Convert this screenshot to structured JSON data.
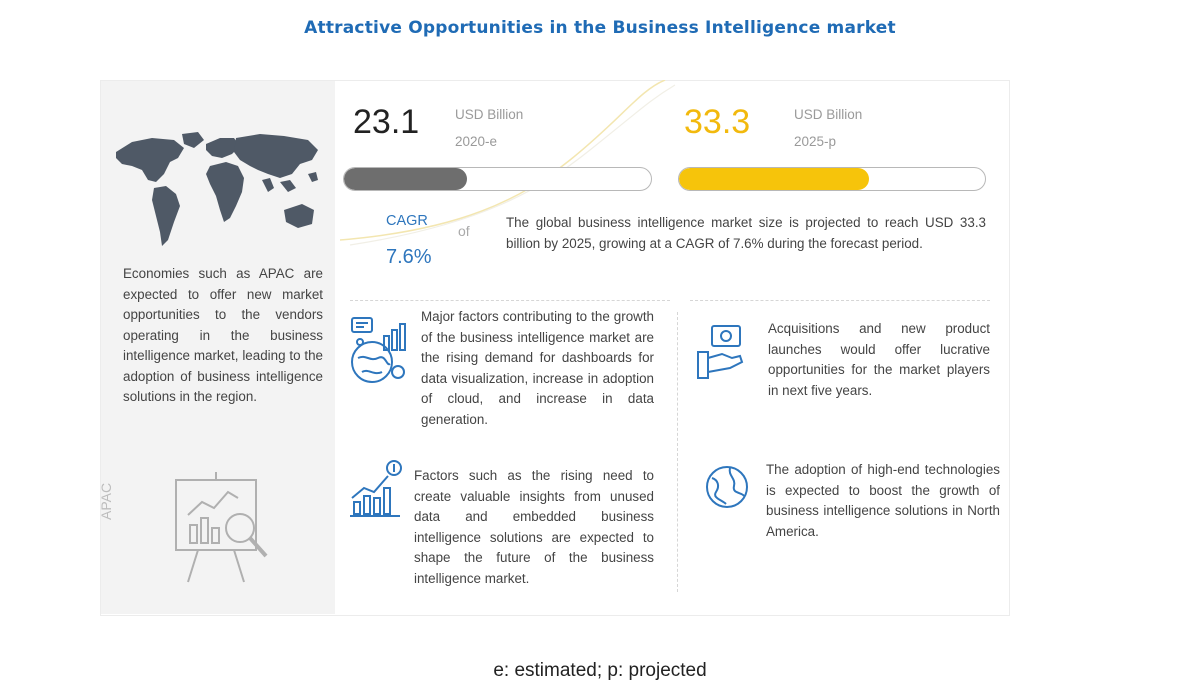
{
  "header": {
    "title": "Attractive Opportunities in the Business Intelligence market"
  },
  "region": {
    "label": "APAC",
    "text": "Economies such as APAC are expected to offer new market opportunities to the vendors operating in the business intelligence market, leading to the adoption of business intelligence solutions in the region."
  },
  "market": {
    "value_2020": "23.1",
    "unit_2020": "USD Billion",
    "year_2020": "2020-e",
    "value_2025": "33.3",
    "unit_2025": "USD Billion",
    "year_2025": "2025-p",
    "bar_2020_fill": 0.4,
    "bar_2025_fill": 0.62,
    "bar_2020_color": "#6e6e6e",
    "bar_2025_color": "#f6c40b"
  },
  "cagr": {
    "label": "CAGR",
    "connector": "of",
    "value": "7.6%",
    "summary": "The global business intelligence market size is projected to reach USD 33.3 billion by 2025, growing at a CAGR of 7.6% during the forecast period."
  },
  "insights": [
    {
      "icon": "analytics-globe-icon",
      "text": "Major factors contributing to the growth of the business intelligence market are the rising demand for dashboards for data visualization, increase in adoption of cloud, and increase in data generation."
    },
    {
      "icon": "growth-chart-icon",
      "text": "Factors such as the rising need to create valuable insights from unused data and embedded business intelligence solutions are expected to shape the future of the business intelligence market."
    },
    {
      "icon": "money-hand-icon",
      "text": "Acquisitions and new product launches would offer lucrative opportunities for the market players in next five years."
    },
    {
      "icon": "globe-icon",
      "text": "The adoption of high-end technologies is expected to boost the growth of business intelligence solutions in North America."
    }
  ],
  "footer": {
    "note": "e: estimated; p: projected"
  },
  "colors": {
    "title": "#1f6bb5",
    "accent_blue": "#2e76bd",
    "accent_yellow": "#f2b90d",
    "map": "#4f5966"
  }
}
